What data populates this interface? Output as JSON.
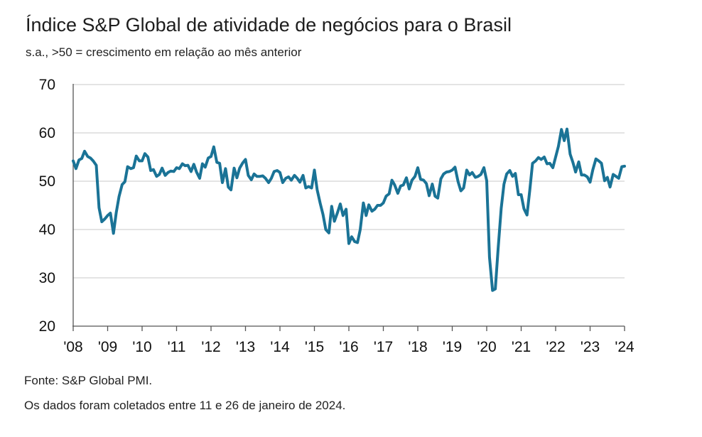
{
  "chart_data": {
    "type": "line",
    "title": "Índice S&P Global de atividade de negócios para o Brasil",
    "subtitle": "s.a., >50 = crescimento em relação ao mês anterior",
    "ylim": [
      20,
      70
    ],
    "yticks": [
      20,
      30,
      40,
      50,
      60,
      70
    ],
    "xlim": [
      2008.0,
      2024.0
    ],
    "xtick_labels": [
      "'08",
      "'09",
      "'10",
      "'11",
      "'12",
      "'13",
      "'14",
      "'15",
      "'16",
      "'17",
      "'18",
      "'19",
      "'20",
      "'21",
      "'22",
      "'23",
      "'24"
    ],
    "grid": true,
    "line_color": "#1a7396",
    "series": [
      {
        "x": [
          2008.0,
          2008.08,
          2008.17,
          2008.25,
          2008.33,
          2008.42,
          2008.5,
          2008.58,
          2008.67,
          2008.75,
          2008.83,
          2008.92,
          2009.0,
          2009.08,
          2009.17,
          2009.25,
          2009.33,
          2009.42,
          2009.5,
          2009.58,
          2009.67,
          2009.75,
          2009.83,
          2009.92,
          2010.0,
          2010.08,
          2010.17,
          2010.25,
          2010.33,
          2010.42,
          2010.5,
          2010.58,
          2010.67,
          2010.75,
          2010.83,
          2010.92,
          2011.0,
          2011.08,
          2011.17,
          2011.25,
          2011.33,
          2011.42,
          2011.5,
          2011.58,
          2011.67,
          2011.75,
          2011.83,
          2011.92,
          2012.0,
          2012.08,
          2012.17,
          2012.25,
          2012.33,
          2012.42,
          2012.5,
          2012.58,
          2012.67,
          2012.75,
          2012.83,
          2012.92,
          2013.0,
          2013.08,
          2013.17,
          2013.25,
          2013.33,
          2013.42,
          2013.5,
          2013.58,
          2013.67,
          2013.75,
          2013.83,
          2013.92,
          2014.0,
          2014.08,
          2014.17,
          2014.25,
          2014.33,
          2014.42,
          2014.5,
          2014.58,
          2014.67,
          2014.75,
          2014.83,
          2014.92,
          2015.0,
          2015.08,
          2015.17,
          2015.25,
          2015.33,
          2015.42,
          2015.5,
          2015.58,
          2015.67,
          2015.75,
          2015.83,
          2015.92,
          2016.0,
          2016.08,
          2016.17,
          2016.25,
          2016.33,
          2016.42,
          2016.5,
          2016.58,
          2016.67,
          2016.75,
          2016.83,
          2016.92,
          2017.0,
          2017.08,
          2017.17,
          2017.25,
          2017.33,
          2017.42,
          2017.5,
          2017.58,
          2017.67,
          2017.75,
          2017.83,
          2017.92,
          2018.0,
          2018.08,
          2018.17,
          2018.25,
          2018.33,
          2018.42,
          2018.5,
          2018.58,
          2018.67,
          2018.75,
          2018.83,
          2018.92,
          2019.0,
          2019.08,
          2019.17,
          2019.25,
          2019.33,
          2019.42,
          2019.5,
          2019.58,
          2019.67,
          2019.75,
          2019.83,
          2019.92,
          2020.0,
          2020.08,
          2020.17,
          2020.25,
          2020.33,
          2020.42,
          2020.5,
          2020.58,
          2020.67,
          2020.75,
          2020.83,
          2020.92,
          2021.0,
          2021.08,
          2021.17,
          2021.25,
          2021.33,
          2021.42,
          2021.5,
          2021.58,
          2021.67,
          2021.75,
          2021.83,
          2021.92,
          2022.0,
          2022.08,
          2022.17,
          2022.25,
          2022.33,
          2022.42,
          2022.5,
          2022.58,
          2022.67,
          2022.75,
          2022.83,
          2022.92,
          2023.0,
          2023.08,
          2023.17,
          2023.25,
          2023.33,
          2023.42,
          2023.5,
          2023.58,
          2023.67,
          2023.75,
          2023.83,
          2023.92,
          2024.0
        ],
        "values": [
          54.2,
          52.6,
          54.4,
          54.7,
          56.2,
          55.1,
          54.8,
          54.2,
          53.3,
          44.5,
          41.6,
          42.2,
          42.9,
          43.4,
          39.2,
          43.5,
          46.8,
          49.3,
          49.9,
          53.0,
          52.6,
          52.8,
          55.2,
          54.2,
          54.2,
          55.7,
          55.0,
          52.2,
          52.4,
          51.0,
          51.4,
          52.7,
          51.2,
          51.8,
          52.1,
          52.0,
          52.8,
          52.6,
          53.6,
          53.2,
          53.3,
          52.0,
          53.5,
          51.9,
          50.6,
          53.6,
          52.9,
          54.8,
          55.1,
          57.1,
          53.9,
          53.7,
          49.7,
          52.6,
          48.8,
          48.2,
          52.7,
          50.7,
          52.7,
          53.8,
          54.5,
          51.2,
          50.3,
          51.5,
          51.0,
          51.0,
          51.1,
          50.6,
          49.7,
          50.6,
          52.0,
          52.2,
          51.8,
          49.7,
          50.6,
          50.9,
          50.2,
          51.2,
          50.6,
          49.8,
          51.2,
          48.6,
          48.9,
          48.6,
          52.3,
          48.2,
          45.4,
          43.1,
          40.0,
          39.3,
          44.8,
          41.7,
          43.5,
          45.3,
          42.9,
          44.2,
          37.1,
          38.5,
          37.5,
          37.3,
          40.0,
          45.5,
          42.9,
          45.1,
          43.8,
          44.2,
          45.0,
          45.0,
          45.5,
          46.9,
          47.4,
          50.2,
          49.2,
          47.5,
          49.0,
          49.2,
          50.7,
          48.4,
          50.2,
          51.0,
          52.8,
          50.4,
          50.2,
          49.5,
          47.0,
          49.4,
          46.9,
          46.5,
          50.5,
          51.5,
          51.9,
          52.0,
          52.3,
          52.9,
          49.9,
          48.0,
          48.6,
          52.3,
          51.3,
          51.8,
          50.8,
          51.0,
          51.4,
          52.8,
          50.1,
          34.3,
          27.4,
          27.7,
          35.9,
          44.4,
          49.4,
          51.5,
          52.2,
          51.0,
          51.6,
          47.2,
          47.2,
          44.3,
          43.0,
          48.1,
          53.7,
          54.2,
          54.9,
          54.5,
          55.0,
          53.6,
          53.7,
          52.8,
          55.0,
          57.2,
          60.7,
          58.4,
          60.8,
          55.6,
          53.9,
          51.9,
          54.0,
          51.3,
          51.3,
          50.9,
          49.8,
          52.4,
          54.6,
          54.2,
          53.7,
          50.1,
          50.8,
          48.8,
          51.4,
          51.0,
          50.6,
          53.0,
          53.1
        ]
      }
    ]
  },
  "footnotes": {
    "source": "Fonte: S&P Global PMI.",
    "collection": "Os dados foram coletados entre 11 e 26  de janeiro de 2024."
  }
}
